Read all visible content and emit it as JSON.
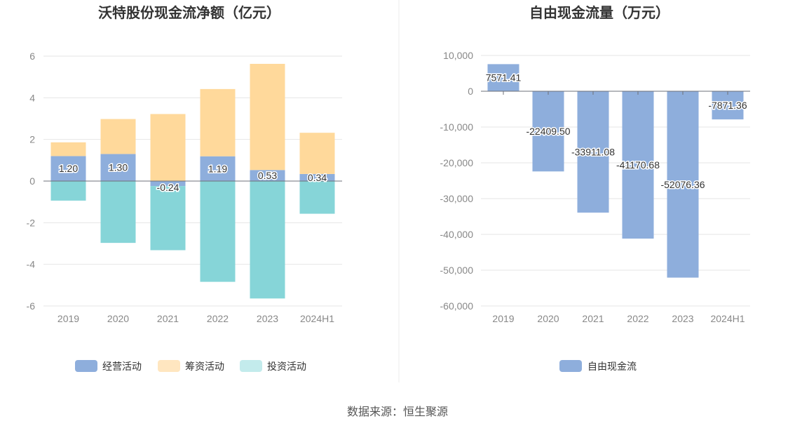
{
  "source_label": "数据来源：恒生聚源",
  "chart_data": [
    {
      "type": "bar",
      "stacked": true,
      "title": "沃特股份现金流净额（亿元）",
      "categories": [
        "2019",
        "2020",
        "2021",
        "2022",
        "2023",
        "2024H1"
      ],
      "ylim": [
        -6,
        6
      ],
      "yticks": [
        6,
        4,
        2,
        0,
        -2,
        -4,
        -6
      ],
      "grid": true,
      "legend_position": "bottom",
      "series": [
        {
          "name": "经营活动",
          "color": "#8eaedc",
          "legend_color": "#8eaedc",
          "values": [
            1.2,
            1.3,
            -0.24,
            1.19,
            0.53,
            0.34
          ],
          "labels_shown": true
        },
        {
          "name": "筹资活动",
          "color": "#ffd99b",
          "legend_color": "#ffe6c0",
          "values": [
            0.66,
            1.68,
            3.22,
            3.23,
            5.1,
            1.98
          ],
          "labels_shown": false
        },
        {
          "name": "投资活动",
          "color": "#86d5d8",
          "legend_color": "#c3ebec",
          "values": [
            -0.94,
            -2.97,
            -3.08,
            -4.84,
            -5.64,
            -1.57
          ],
          "labels_shown": false
        }
      ]
    },
    {
      "type": "bar",
      "title": "自由现金流量（万元）",
      "categories": [
        "2019",
        "2020",
        "2021",
        "2022",
        "2023",
        "2024H1"
      ],
      "ylim": [
        -60000,
        10000
      ],
      "yticks": [
        "10,000",
        "0",
        "-10,000",
        "-20,000",
        "-30,000",
        "-40,000",
        "-50,000",
        "-60,000"
      ],
      "ytick_values": [
        10000,
        0,
        -10000,
        -20000,
        -30000,
        -40000,
        -50000,
        -60000
      ],
      "grid": true,
      "legend_position": "bottom",
      "series": [
        {
          "name": "自由现金流",
          "color": "#8eaedc",
          "values": [
            7571.41,
            -22409.5,
            -33911.08,
            -41170.68,
            -52076.36,
            -7871.36
          ],
          "value_labels": [
            "7571.41",
            "-22409.50",
            "-33911.08",
            "-41170.68",
            "-52076.36",
            "-7871.36"
          ]
        }
      ]
    }
  ]
}
